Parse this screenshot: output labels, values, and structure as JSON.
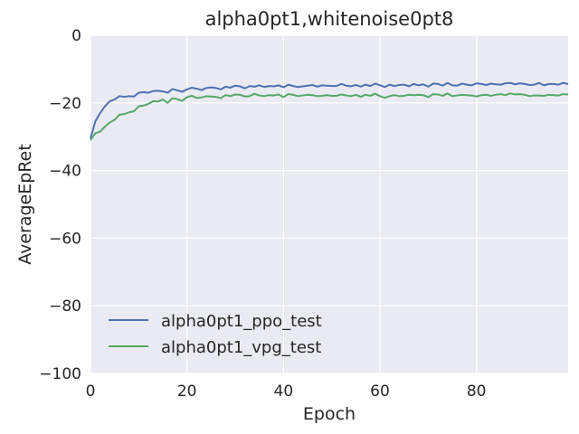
{
  "chart_data": {
    "type": "line",
    "title": "alpha0pt1,whitenoise0pt8",
    "xlabel": "Epoch",
    "ylabel": "AverageEpRet",
    "xlim": [
      0,
      99
    ],
    "ylim": [
      -100,
      0
    ],
    "xticks": [
      0,
      20,
      40,
      60,
      80
    ],
    "yticks": [
      0,
      -20,
      -40,
      -60,
      -80,
      -100
    ],
    "xtick_labels": [
      "0",
      "20",
      "40",
      "60",
      "80"
    ],
    "ytick_labels": [
      "0",
      "−20",
      "−40",
      "−60",
      "−80",
      "−100"
    ],
    "grid": true,
    "legend": "lower-left",
    "background": "#EAEAF2",
    "series": [
      {
        "name": "alpha0pt1_ppo_test",
        "color": "#4C72B0",
        "x": [
          0,
          1,
          2,
          3,
          4,
          5,
          6,
          7,
          8,
          9,
          10,
          11,
          12,
          13,
          14,
          15,
          16,
          17,
          18,
          19,
          20,
          21,
          22,
          23,
          24,
          25,
          26,
          27,
          28,
          29,
          30,
          31,
          32,
          33,
          34,
          35,
          36,
          37,
          38,
          39,
          40,
          41,
          42,
          43,
          44,
          45,
          46,
          47,
          48,
          49,
          50,
          51,
          52,
          53,
          54,
          55,
          56,
          57,
          58,
          59,
          60,
          61,
          62,
          63,
          64,
          65,
          66,
          67,
          68,
          69,
          70,
          71,
          72,
          73,
          74,
          75,
          76,
          77,
          78,
          79,
          80,
          81,
          82,
          83,
          84,
          85,
          86,
          87,
          88,
          89,
          90,
          91,
          92,
          93,
          94,
          95,
          96,
          97,
          98,
          99
        ],
        "y": [
          -30.5,
          -25.5,
          -23.0,
          -21.0,
          -19.5,
          -19.0,
          -18.0,
          -18.2,
          -18.0,
          -18.1,
          -17.0,
          -16.8,
          -17.0,
          -16.5,
          -16.4,
          -16.6,
          -17.0,
          -15.9,
          -16.3,
          -16.7,
          -16.0,
          -15.5,
          -15.8,
          -16.2,
          -15.6,
          -15.4,
          -15.6,
          -16.0,
          -15.2,
          -15.5,
          -14.9,
          -15.1,
          -15.7,
          -15.0,
          -15.2,
          -14.8,
          -15.3,
          -15.0,
          -15.1,
          -14.8,
          -15.4,
          -14.6,
          -15.0,
          -15.3,
          -15.1,
          -14.9,
          -14.7,
          -15.2,
          -14.8,
          -14.9,
          -15.0,
          -15.0,
          -14.4,
          -14.9,
          -15.1,
          -14.7,
          -15.2,
          -14.6,
          -15.0,
          -14.3,
          -14.8,
          -15.3,
          -14.6,
          -15.0,
          -14.7,
          -14.6,
          -15.1,
          -14.4,
          -14.8,
          -14.5,
          -15.2,
          -14.3,
          -14.4,
          -14.9,
          -14.1,
          -14.8,
          -14.9,
          -14.3,
          -14.6,
          -14.8,
          -14.2,
          -14.4,
          -14.7,
          -14.3,
          -14.5,
          -14.6,
          -14.2,
          -14.1,
          -14.5,
          -14.2,
          -14.4,
          -14.7,
          -14.6,
          -14.1,
          -14.8,
          -14.4,
          -14.4,
          -14.6,
          -14.1,
          -14.4
        ]
      },
      {
        "name": "alpha0pt1_vpg_test",
        "color": "#55A868",
        "x": [
          0,
          1,
          2,
          3,
          4,
          5,
          6,
          7,
          8,
          9,
          10,
          11,
          12,
          13,
          14,
          15,
          16,
          17,
          18,
          19,
          20,
          21,
          22,
          23,
          24,
          25,
          26,
          27,
          28,
          29,
          30,
          31,
          32,
          33,
          34,
          35,
          36,
          37,
          38,
          39,
          40,
          41,
          42,
          43,
          44,
          45,
          46,
          47,
          48,
          49,
          50,
          51,
          52,
          53,
          54,
          55,
          56,
          57,
          58,
          59,
          60,
          61,
          62,
          63,
          64,
          65,
          66,
          67,
          68,
          69,
          70,
          71,
          72,
          73,
          74,
          75,
          76,
          77,
          78,
          79,
          80,
          81,
          82,
          83,
          84,
          85,
          86,
          87,
          88,
          89,
          90,
          91,
          92,
          93,
          94,
          95,
          96,
          97,
          98,
          99
        ],
        "y": [
          -31.0,
          -29.0,
          -28.5,
          -27.0,
          -25.8,
          -25.0,
          -23.5,
          -23.3,
          -22.8,
          -22.5,
          -21.0,
          -20.8,
          -20.3,
          -19.5,
          -19.6,
          -19.0,
          -20.0,
          -18.6,
          -18.9,
          -19.4,
          -18.3,
          -17.9,
          -18.5,
          -18.4,
          -18.0,
          -18.1,
          -18.2,
          -18.6,
          -17.7,
          -18.0,
          -17.5,
          -17.6,
          -18.1,
          -18.0,
          -17.3,
          -17.8,
          -18.0,
          -17.7,
          -17.8,
          -17.5,
          -18.3,
          -17.4,
          -17.6,
          -18.0,
          -17.8,
          -17.6,
          -17.7,
          -18.0,
          -17.9,
          -17.7,
          -17.9,
          -17.9,
          -17.5,
          -17.8,
          -18.0,
          -17.6,
          -18.2,
          -17.6,
          -17.9,
          -17.3,
          -18.0,
          -18.5,
          -18.0,
          -17.7,
          -18.0,
          -17.9,
          -17.6,
          -17.7,
          -17.6,
          -17.7,
          -18.3,
          -17.4,
          -17.5,
          -17.9,
          -17.2,
          -18.0,
          -17.8,
          -17.6,
          -17.7,
          -17.8,
          -18.1,
          -17.7,
          -17.6,
          -17.9,
          -17.6,
          -17.4,
          -17.7,
          -17.2,
          -17.5,
          -17.4,
          -17.6,
          -18.0,
          -17.8,
          -17.8,
          -17.9,
          -17.6,
          -17.7,
          -17.8,
          -17.4,
          -17.5
        ]
      }
    ]
  }
}
